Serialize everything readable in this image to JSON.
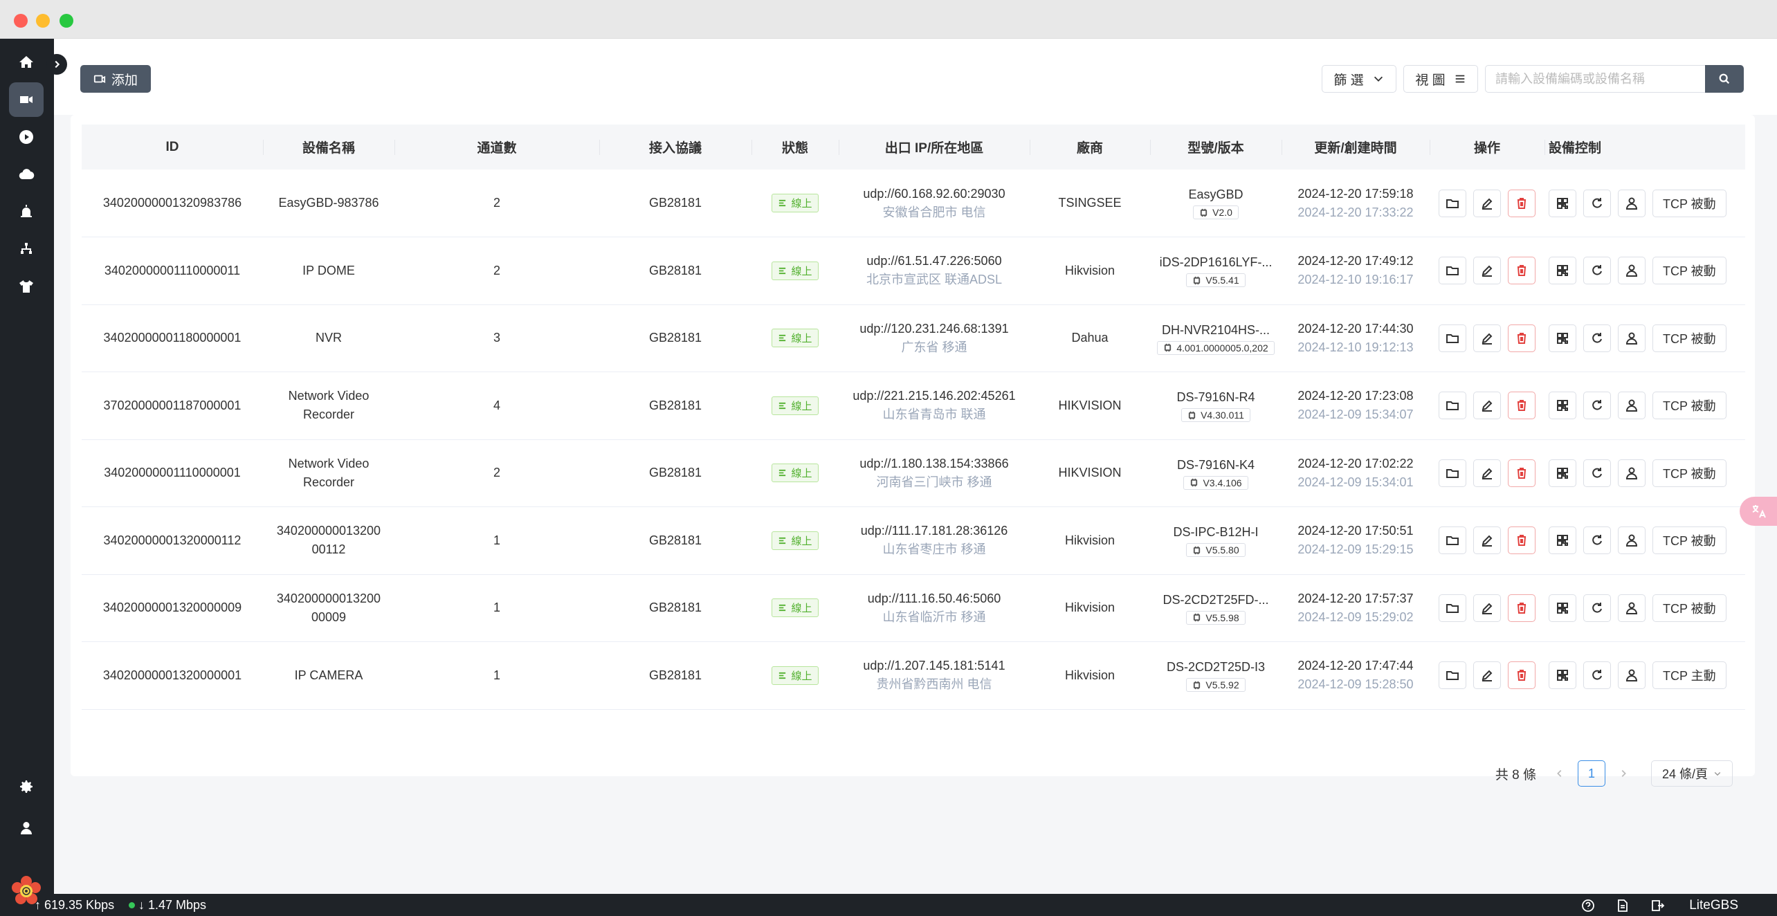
{
  "toolbar": {
    "add_label": "添加",
    "filter_label": "篩 選",
    "view_label": "視 圖",
    "search_placeholder": "請輸入設備編碼或設備名稱"
  },
  "table": {
    "headers": {
      "id": "ID",
      "name": "設備名稱",
      "channels": "通道數",
      "protocol": "接入協議",
      "status": "狀態",
      "ip": "出口 IP/所在地區",
      "vendor": "廠商",
      "model": "型號/版本",
      "time": "更新/創建時間",
      "ops": "操作",
      "control": "設備控制"
    },
    "rows": [
      {
        "id": "34020000001320983786",
        "name": "EasyGBD-983786",
        "channels": "2",
        "protocol": "GB28181",
        "status": "線上",
        "ip": "udp://60.168.92.60:29030",
        "region": "安徽省合肥市 电信",
        "vendor": "TSINGSEE",
        "model": "EasyGBD",
        "version": "V2.0",
        "updated": "2024-12-20 17:59:18",
        "created": "2024-12-20 17:33:22",
        "tcp": "TCP 被動"
      },
      {
        "id": "34020000001110000011",
        "name": "IP DOME",
        "channels": "2",
        "protocol": "GB28181",
        "status": "線上",
        "ip": "udp://61.51.47.226:5060",
        "region": "北京市宣武区 联通ADSL",
        "vendor": "Hikvision",
        "model": "iDS-2DP1616LYF-...",
        "version": "V5.5.41",
        "updated": "2024-12-20 17:49:12",
        "created": "2024-12-10 19:16:17",
        "tcp": "TCP 被動"
      },
      {
        "id": "34020000001180000001",
        "name": "NVR",
        "channels": "3",
        "protocol": "GB28181",
        "status": "線上",
        "ip": "udp://120.231.246.68:1391",
        "region": "广东省 移通",
        "vendor": "Dahua",
        "model": "DH-NVR2104HS-...",
        "version": "4.001.0000005.0,202",
        "updated": "2024-12-20 17:44:30",
        "created": "2024-12-10 19:12:13",
        "tcp": "TCP 被動"
      },
      {
        "id": "37020000001187000001",
        "name": "Network Video Recorder",
        "channels": "4",
        "protocol": "GB28181",
        "status": "線上",
        "ip": "udp://221.215.146.202:45261",
        "region": "山东省青岛市 联通",
        "vendor": "HIKVISION",
        "model": "DS-7916N-R4",
        "version": "V4.30.011",
        "updated": "2024-12-20 17:23:08",
        "created": "2024-12-09 15:34:07",
        "tcp": "TCP 被動"
      },
      {
        "id": "34020000001110000001",
        "name": "Network Video Recorder",
        "channels": "2",
        "protocol": "GB28181",
        "status": "線上",
        "ip": "udp://1.180.138.154:33866",
        "region": "河南省三门峡市 移通",
        "vendor": "HIKVISION",
        "model": "DS-7916N-K4",
        "version": "V3.4.106",
        "updated": "2024-12-20 17:02:22",
        "created": "2024-12-09 15:34:01",
        "tcp": "TCP 被動"
      },
      {
        "id": "34020000001320000112",
        "name": "340200000013200 00112",
        "channels": "1",
        "protocol": "GB28181",
        "status": "線上",
        "ip": "udp://111.17.181.28:36126",
        "region": "山东省枣庄市 移通",
        "vendor": "Hikvision",
        "model": "DS-IPC-B12H-I",
        "version": "V5.5.80",
        "updated": "2024-12-20 17:50:51",
        "created": "2024-12-09 15:29:15",
        "tcp": "TCP 被動"
      },
      {
        "id": "34020000001320000009",
        "name": "340200000013200 00009",
        "channels": "1",
        "protocol": "GB28181",
        "status": "線上",
        "ip": "udp://111.16.50.46:5060",
        "region": "山东省临沂市 移通",
        "vendor": "Hikvision",
        "model": "DS-2CD2T25FD-...",
        "version": "V5.5.98",
        "updated": "2024-12-20 17:57:37",
        "created": "2024-12-09 15:29:02",
        "tcp": "TCP 被動"
      },
      {
        "id": "34020000001320000001",
        "name": "IP CAMERA",
        "channels": "1",
        "protocol": "GB28181",
        "status": "線上",
        "ip": "udp://1.207.145.181:5141",
        "region": "贵州省黔西南州 电信",
        "vendor": "Hikvision",
        "model": "DS-2CD2T25D-I3",
        "version": "V5.5.92",
        "updated": "2024-12-20 17:47:44",
        "created": "2024-12-09 15:28:50",
        "tcp": "TCP 主動"
      }
    ]
  },
  "pagination": {
    "total": "共 8 條",
    "current_page": "1",
    "page_size": "24 條/頁"
  },
  "statusbar": {
    "upload": "↑ 619.35 Kbps",
    "download": "↓ 1.47 Mbps",
    "app_name": "LiteGBS"
  }
}
